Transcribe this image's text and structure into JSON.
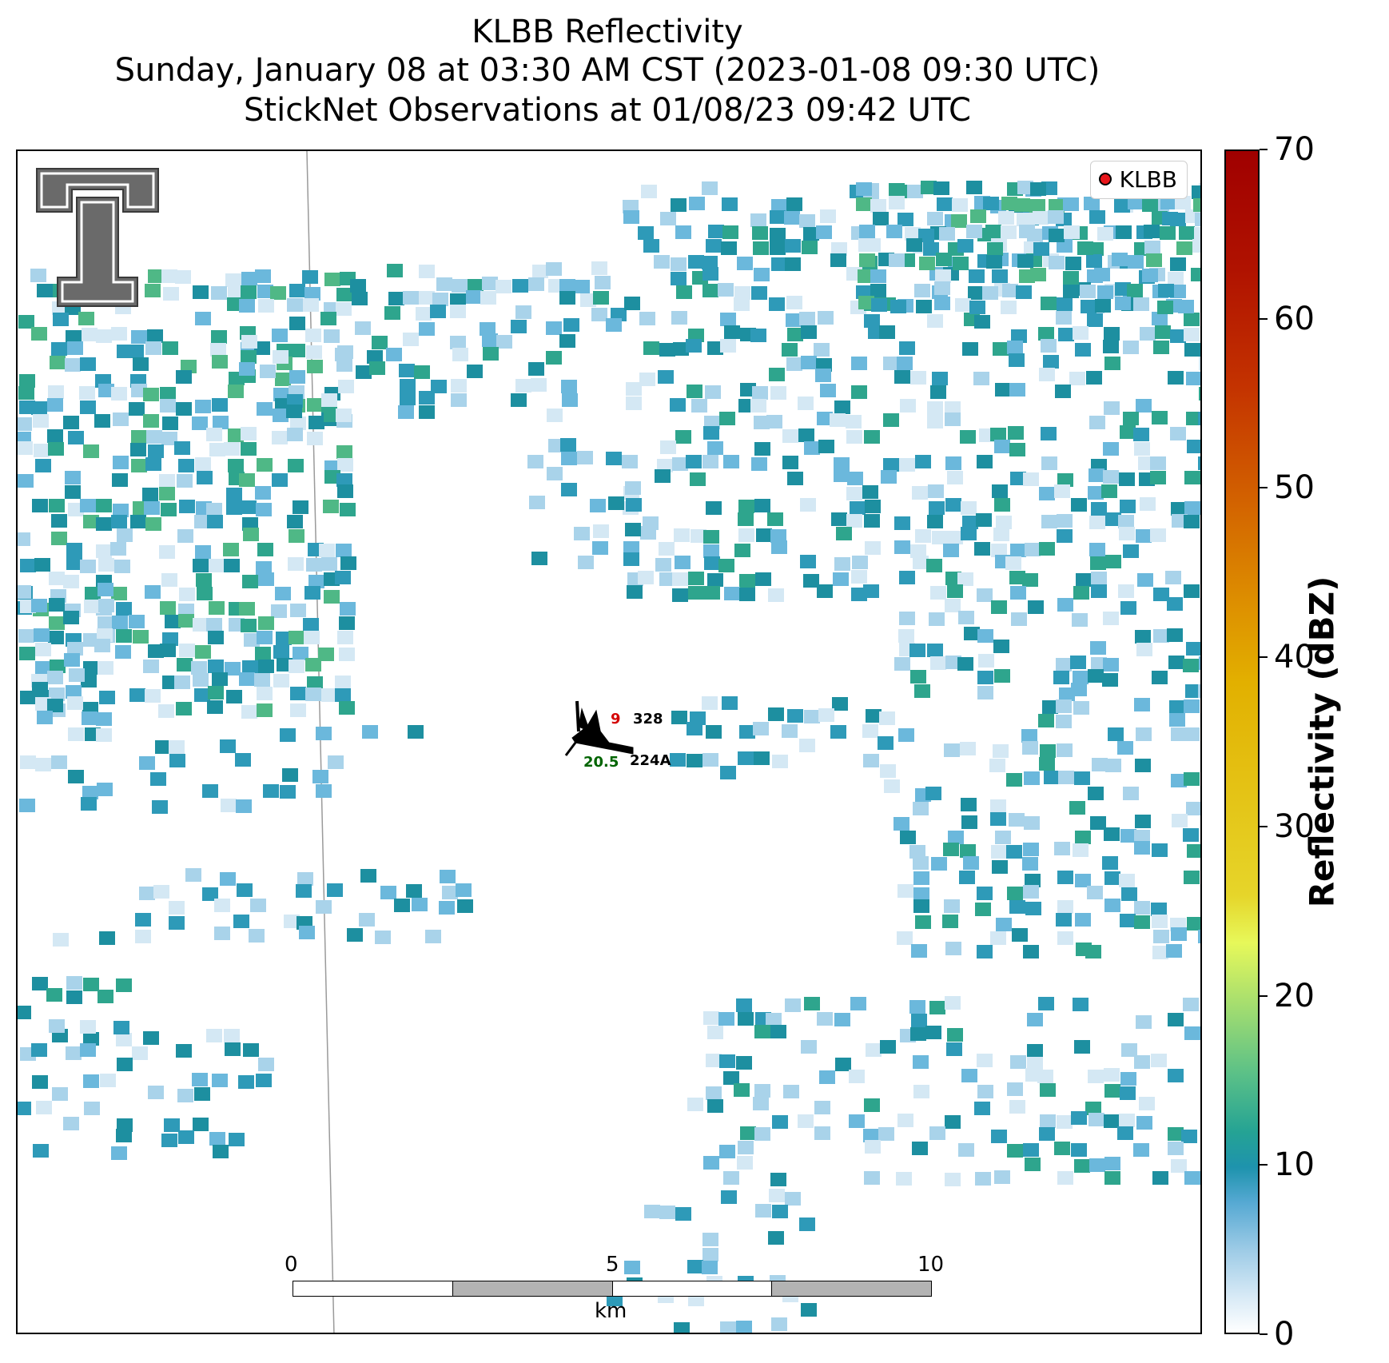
{
  "title": {
    "line1": "KLBB Reflectivity",
    "line2": "Sunday, January 08 at 03:30 AM CST (2023-01-08 09:30 UTC)",
    "line3": "StickNet Observations at 01/08/23 09:42 UTC"
  },
  "legend": {
    "label": "KLBB",
    "marker_color": "#e8161b"
  },
  "colorbar": {
    "title": "Reflectivity (dBZ)",
    "ticks": [
      "0",
      "10",
      "20",
      "30",
      "40",
      "50",
      "60",
      "70"
    ]
  },
  "scalebar": {
    "ticks": [
      "0",
      "5",
      "10"
    ],
    "unit": "km"
  },
  "station": {
    "temperature": "9",
    "dewpoint": "20.5",
    "pressure": "328",
    "id": "224A",
    "temperature_color": "#d40000",
    "dewpoint_color": "#006400"
  },
  "logo": {
    "name": "texas-tech-double-t-logo"
  },
  "palette": [
    "#d4e8f4",
    "#a9d3ea",
    "#6bb8dc",
    "#2e9ab8",
    "#1d8fa0",
    "#2ea58d",
    "#4fb886",
    "#8ed46f",
    "#c8ec5e"
  ]
}
